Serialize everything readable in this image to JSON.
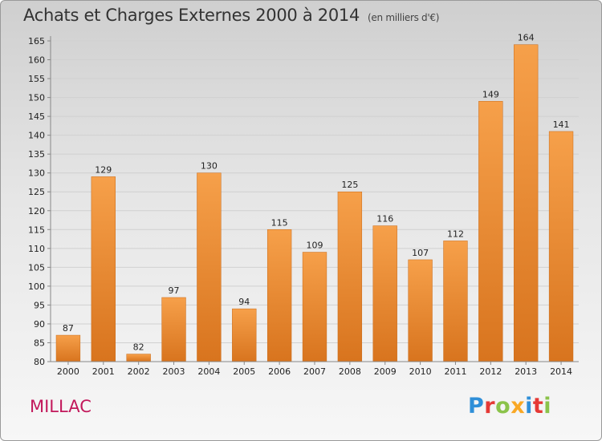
{
  "header": {
    "title": "Achats et Charges Externes 2000 à 2014",
    "subtitle": "(en milliers d'€)"
  },
  "footer": {
    "city": "MILLAC",
    "logo": "Proxiti",
    "logo_colors": [
      "#2f8fd8",
      "#e53935",
      "#8bc34a",
      "#f9a825",
      "#2f8fd8",
      "#e53935",
      "#8bc34a"
    ]
  },
  "colors": {
    "bar_light": "#f6a04a",
    "bar_dark": "#d8741e",
    "axis": "#888888",
    "grid": "#d0d0d0"
  },
  "chart_data": {
    "type": "bar",
    "title": "Achats et Charges Externes 2000 à 2014",
    "categories": [
      "2000",
      "2001",
      "2002",
      "2003",
      "2004",
      "2005",
      "2006",
      "2007",
      "2008",
      "2009",
      "2010",
      "2011",
      "2012",
      "2013",
      "2014"
    ],
    "values": [
      87,
      129,
      82,
      97,
      130,
      94,
      115,
      109,
      125,
      116,
      107,
      112,
      149,
      164,
      141
    ],
    "ylim": [
      80,
      165
    ],
    "yticks": [
      80,
      85,
      90,
      95,
      100,
      105,
      110,
      115,
      120,
      125,
      130,
      135,
      140,
      145,
      150,
      155,
      160,
      165
    ],
    "grid": true,
    "legend": "none"
  }
}
